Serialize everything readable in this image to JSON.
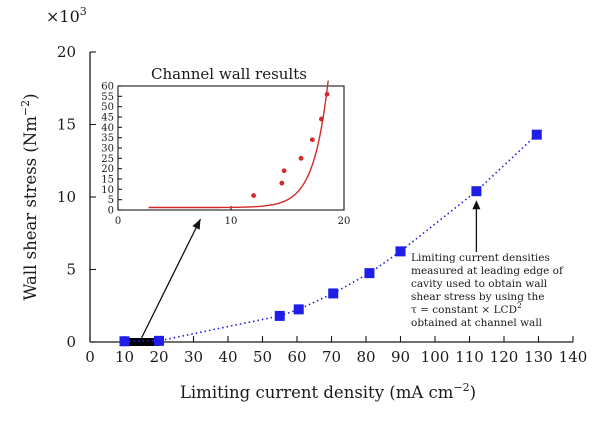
{
  "chart_data": [
    {
      "type": "scatter",
      "xlabel": "Limiting current density (mA cm",
      "xlabel_sup": "−2",
      "xlabel_tail": ")",
      "ylabel": "Wall shear stress (Nm",
      "ylabel_sup": "−2",
      "ylabel_tail": ")",
      "y_multiplier_prefix": "×10",
      "y_multiplier_exp": "3",
      "xlim": [
        0,
        140
      ],
      "ylim": [
        0,
        20
      ],
      "xticks": [
        0,
        10,
        20,
        30,
        40,
        50,
        60,
        70,
        80,
        90,
        100,
        110,
        120,
        130,
        140
      ],
      "yticks": [
        0,
        5,
        10,
        15,
        20
      ],
      "grid": false,
      "series": [
        {
          "marker": "square",
          "color": "#1e1ee6",
          "line": "dotted",
          "points": [
            {
              "x": 10,
              "y": 0.05
            },
            {
              "x": 20,
              "y": 0.08
            },
            {
              "x": 55,
              "y": 1.8
            },
            {
              "x": 60.5,
              "y": 2.25
            },
            {
              "x": 70.5,
              "y": 3.35
            },
            {
              "x": 81,
              "y": 4.75
            },
            {
              "x": 90,
              "y": 6.25
            },
            {
              "x": 112,
              "y": 10.4
            },
            {
              "x": 129.5,
              "y": 14.3
            }
          ]
        }
      ],
      "highlight_range": {
        "x_from": 10,
        "x_to": 20,
        "color": "#000000"
      },
      "annotation": {
        "lines": [
          "Limiting current densities",
          "measured at leading edge of",
          "cavity used to obtain wall",
          "shear stress by using the",
          "τ = constant × LCD",
          "obtained at channel wall"
        ],
        "superscript": "2",
        "arrow_to": {
          "x": 112,
          "y": 10.4
        }
      }
    },
    {
      "type": "scatter",
      "title": "Channel wall results",
      "xlim": [
        0,
        20
      ],
      "ylim": [
        0,
        60
      ],
      "xticks": [
        0,
        10,
        20
      ],
      "yticks": [
        0,
        5,
        10,
        15,
        20,
        25,
        30,
        35,
        40,
        45,
        50,
        55,
        60
      ],
      "grid": false,
      "series": [
        {
          "marker": "circle",
          "color": "#d42a2a",
          "points": [
            {
              "x": 12,
              "y": 7
            },
            {
              "x": 14.5,
              "y": 13
            },
            {
              "x": 14.7,
              "y": 19
            },
            {
              "x": 16.2,
              "y": 25
            },
            {
              "x": 17.2,
              "y": 34
            },
            {
              "x": 18,
              "y": 44
            },
            {
              "x": 18.5,
              "y": 56
            }
          ]
        }
      ],
      "fit_curve": {
        "color": "#d42a2a",
        "x_from": 2.7,
        "x_to": 18.6
      }
    }
  ]
}
